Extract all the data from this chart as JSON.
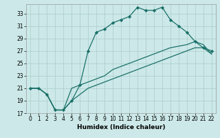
{
  "xlabel": "Humidex (Indice chaleur)",
  "bg_color": "#cce8e8",
  "line_color": "#1a7068",
  "grid_color": "#aacccc",
  "xlim": [
    -0.5,
    22.5
  ],
  "ylim": [
    17,
    34.5
  ],
  "xticks": [
    0,
    1,
    2,
    3,
    4,
    5,
    6,
    7,
    8,
    9,
    10,
    11,
    12,
    13,
    14,
    15,
    16,
    17,
    18,
    19,
    20,
    21,
    22
  ],
  "yticks": [
    17,
    19,
    21,
    23,
    25,
    27,
    29,
    31,
    33
  ],
  "line1_x": [
    0,
    1,
    2,
    3,
    4,
    5,
    6,
    7,
    8,
    9,
    10,
    11,
    12,
    13,
    14,
    15,
    16,
    17,
    19,
    20,
    21,
    22
  ],
  "line1_y": [
    21,
    21,
    20,
    17.5,
    17.5,
    21,
    21.5,
    22,
    22.5,
    23,
    24,
    24.5,
    25,
    25.5,
    26,
    26.5,
    27,
    27.5,
    28,
    28.5,
    28,
    26.5
  ],
  "line2_x": [
    0,
    1,
    2,
    3,
    4,
    5,
    6,
    7,
    8,
    9,
    10,
    11,
    12,
    13,
    14,
    15,
    16,
    17,
    18,
    19,
    20,
    21,
    22
  ],
  "line2_y": [
    21,
    21,
    20,
    17.5,
    17.5,
    19,
    20,
    21,
    21.5,
    22,
    22.5,
    23,
    23.5,
    24,
    24.5,
    25,
    25.5,
    26,
    26.5,
    27,
    27.5,
    27.5,
    26.5
  ],
  "line3_x": [
    0,
    1,
    2,
    3,
    4,
    5,
    6,
    7,
    8,
    9,
    10,
    11,
    12,
    13,
    14,
    15,
    16,
    17,
    18,
    19,
    20,
    21,
    22
  ],
  "line3_y": [
    21,
    21,
    20,
    17.5,
    17.5,
    19,
    21.5,
    27,
    30,
    30.5,
    31.5,
    32,
    32.5,
    34,
    33.5,
    33.5,
    34,
    32,
    31,
    30,
    28.5,
    27.5,
    27
  ],
  "marker": "D",
  "markersize": 2.2,
  "linewidth": 0.9,
  "tick_fontsize": 5.5,
  "xlabel_fontsize": 6.5
}
